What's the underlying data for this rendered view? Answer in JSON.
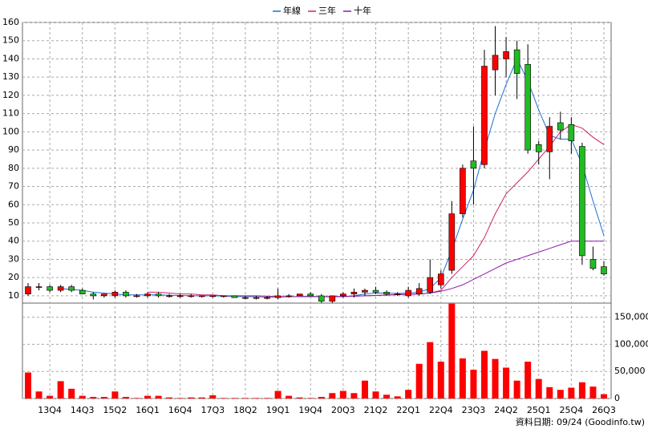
{
  "chart_data": [
    {
      "type": "candlestick",
      "categories": [
        null,
        null,
        "13Q4",
        null,
        null,
        "14Q3",
        null,
        null,
        "15Q2",
        null,
        null,
        "16Q1",
        null,
        null,
        "16Q4",
        null,
        null,
        "17Q3",
        null,
        null,
        "18Q2",
        null,
        null,
        "19Q1",
        null,
        null,
        "19Q4",
        null,
        null,
        "20Q3",
        null,
        null,
        "21Q2",
        null,
        null,
        "22Q1",
        null,
        null,
        "22Q4",
        null,
        null,
        "23Q3",
        null,
        null,
        "24Q2",
        null,
        null,
        "25Q1",
        null,
        null,
        "25Q4",
        null,
        null,
        "26Q3"
      ],
      "open": [
        11,
        15,
        15,
        13,
        15,
        13,
        11,
        10,
        10,
        12,
        10,
        10,
        11,
        10,
        10,
        10,
        10,
        10,
        10,
        10,
        9,
        9,
        9,
        9,
        10,
        10,
        11,
        10,
        7,
        10,
        11,
        12,
        13,
        12,
        11,
        10,
        11,
        12,
        16,
        24,
        55,
        84,
        82,
        134,
        140,
        145,
        137,
        93,
        89,
        105,
        104,
        92,
        30,
        26
      ],
      "high": [
        17,
        17,
        16,
        16,
        16,
        14,
        12,
        11,
        13,
        13,
        11,
        12,
        12,
        11,
        11,
        11,
        10,
        10,
        10,
        10,
        10,
        10,
        10,
        14,
        11,
        11,
        12,
        11,
        10,
        12,
        14,
        14,
        15,
        13,
        12,
        15,
        17,
        30,
        24,
        62,
        82,
        103,
        145,
        158,
        152,
        150,
        148,
        95,
        108,
        111,
        108,
        94,
        37,
        29
      ],
      "low": [
        10,
        13,
        12,
        12,
        12,
        11,
        8,
        9,
        9,
        9,
        9,
        9,
        9,
        9,
        9,
        9,
        9,
        9,
        9,
        9,
        8,
        8,
        8,
        8,
        9,
        10,
        10,
        6,
        6,
        9,
        9,
        10,
        11,
        10,
        10,
        9,
        10,
        11,
        14,
        22,
        53,
        60,
        80,
        120,
        130,
        118,
        88,
        82,
        74,
        96,
        88,
        27,
        24,
        21
      ],
      "close": [
        15,
        15,
        13,
        15,
        13,
        11,
        10,
        11,
        12,
        10,
        10,
        11,
        10,
        10,
        10,
        10,
        10,
        10,
        10,
        9,
        9,
        9,
        9,
        10,
        10,
        11,
        10,
        7,
        10,
        11,
        12,
        13,
        12,
        11,
        11,
        13,
        14,
        20,
        22,
        55,
        80,
        80,
        136,
        142,
        144,
        132,
        90,
        89,
        103,
        101,
        95,
        32,
        25,
        22
      ],
      "up_color": "#ff0000",
      "down_color": "#22bb22",
      "series": [
        {
          "name": "年線",
          "color": "#1a6fd6",
          "values": [
            null,
            null,
            null,
            14,
            13.5,
            13,
            12,
            11.5,
            11,
            10.5,
            10.5,
            10.5,
            10.5,
            10.3,
            10.2,
            10,
            10,
            10,
            9.8,
            9.6,
            9.5,
            9.5,
            9.3,
            9.3,
            9.5,
            9.6,
            9.7,
            9.5,
            9.4,
            9.6,
            10,
            11,
            11.5,
            11.5,
            11.3,
            11.5,
            12,
            14,
            20,
            35,
            52,
            68,
            90,
            110,
            126,
            140,
            128,
            112,
            98,
            96,
            96,
            82,
            62,
            43
          ]
        },
        {
          "name": "三年",
          "color": "#d0206a",
          "values": [
            null,
            null,
            null,
            null,
            null,
            null,
            null,
            null,
            null,
            null,
            null,
            12,
            12,
            11.5,
            11,
            11,
            10.5,
            10.5,
            10,
            10,
            10,
            10,
            9.8,
            9.6,
            9.5,
            9.5,
            9.5,
            9.5,
            9.5,
            9.6,
            9.8,
            10,
            10.2,
            10.5,
            10.7,
            10.8,
            11,
            11.5,
            13,
            20,
            26,
            32,
            42,
            55,
            66,
            72,
            78,
            85,
            92,
            100,
            104,
            102,
            97,
            93
          ]
        },
        {
          "name": "十年",
          "color": "#8a1aa8",
          "values": [
            null,
            null,
            null,
            null,
            null,
            null,
            null,
            null,
            null,
            null,
            null,
            null,
            null,
            null,
            null,
            null,
            null,
            null,
            null,
            null,
            null,
            null,
            null,
            9.5,
            9.5,
            9.5,
            9.6,
            9.6,
            9.6,
            9.7,
            9.8,
            10,
            10.2,
            10.4,
            10.6,
            10.8,
            11,
            11.5,
            12.5,
            14,
            16,
            19,
            22,
            25,
            28,
            30,
            32,
            34,
            36,
            38,
            40,
            40,
            40,
            40
          ]
        }
      ],
      "ylim": [
        6,
        160
      ],
      "yticks": [
        10,
        20,
        30,
        40,
        50,
        60,
        70,
        80,
        90,
        100,
        110,
        120,
        130,
        140,
        150,
        160
      ],
      "grid": true
    },
    {
      "type": "bar",
      "values": [
        48000,
        13000,
        5000,
        32000,
        18000,
        5000,
        3000,
        3000,
        13000,
        3000,
        1000,
        5000,
        5000,
        2000,
        1000,
        2000,
        2000,
        6000,
        1000,
        1000,
        1000,
        1000,
        1000,
        14000,
        5000,
        2000,
        1000,
        3000,
        10000,
        14000,
        10000,
        33000,
        13000,
        7000,
        4000,
        16000,
        64000,
        104000,
        68000,
        175000,
        74000,
        53000,
        88000,
        73000,
        57000,
        33000,
        68000,
        36000,
        21000,
        16000,
        20000,
        30000,
        22000,
        8000
      ],
      "color": "#ff0000",
      "ylim": [
        0,
        176000
      ],
      "yticks": [
        0,
        {
          "value": 50000,
          "label": "50,000"
        },
        {
          "value": 100000,
          "label": "100,000"
        },
        {
          "value": 150000,
          "label": "150,000"
        }
      ],
      "grid": true
    }
  ],
  "footer": "資料日期: 09/24  (Goodinfo.tw)"
}
